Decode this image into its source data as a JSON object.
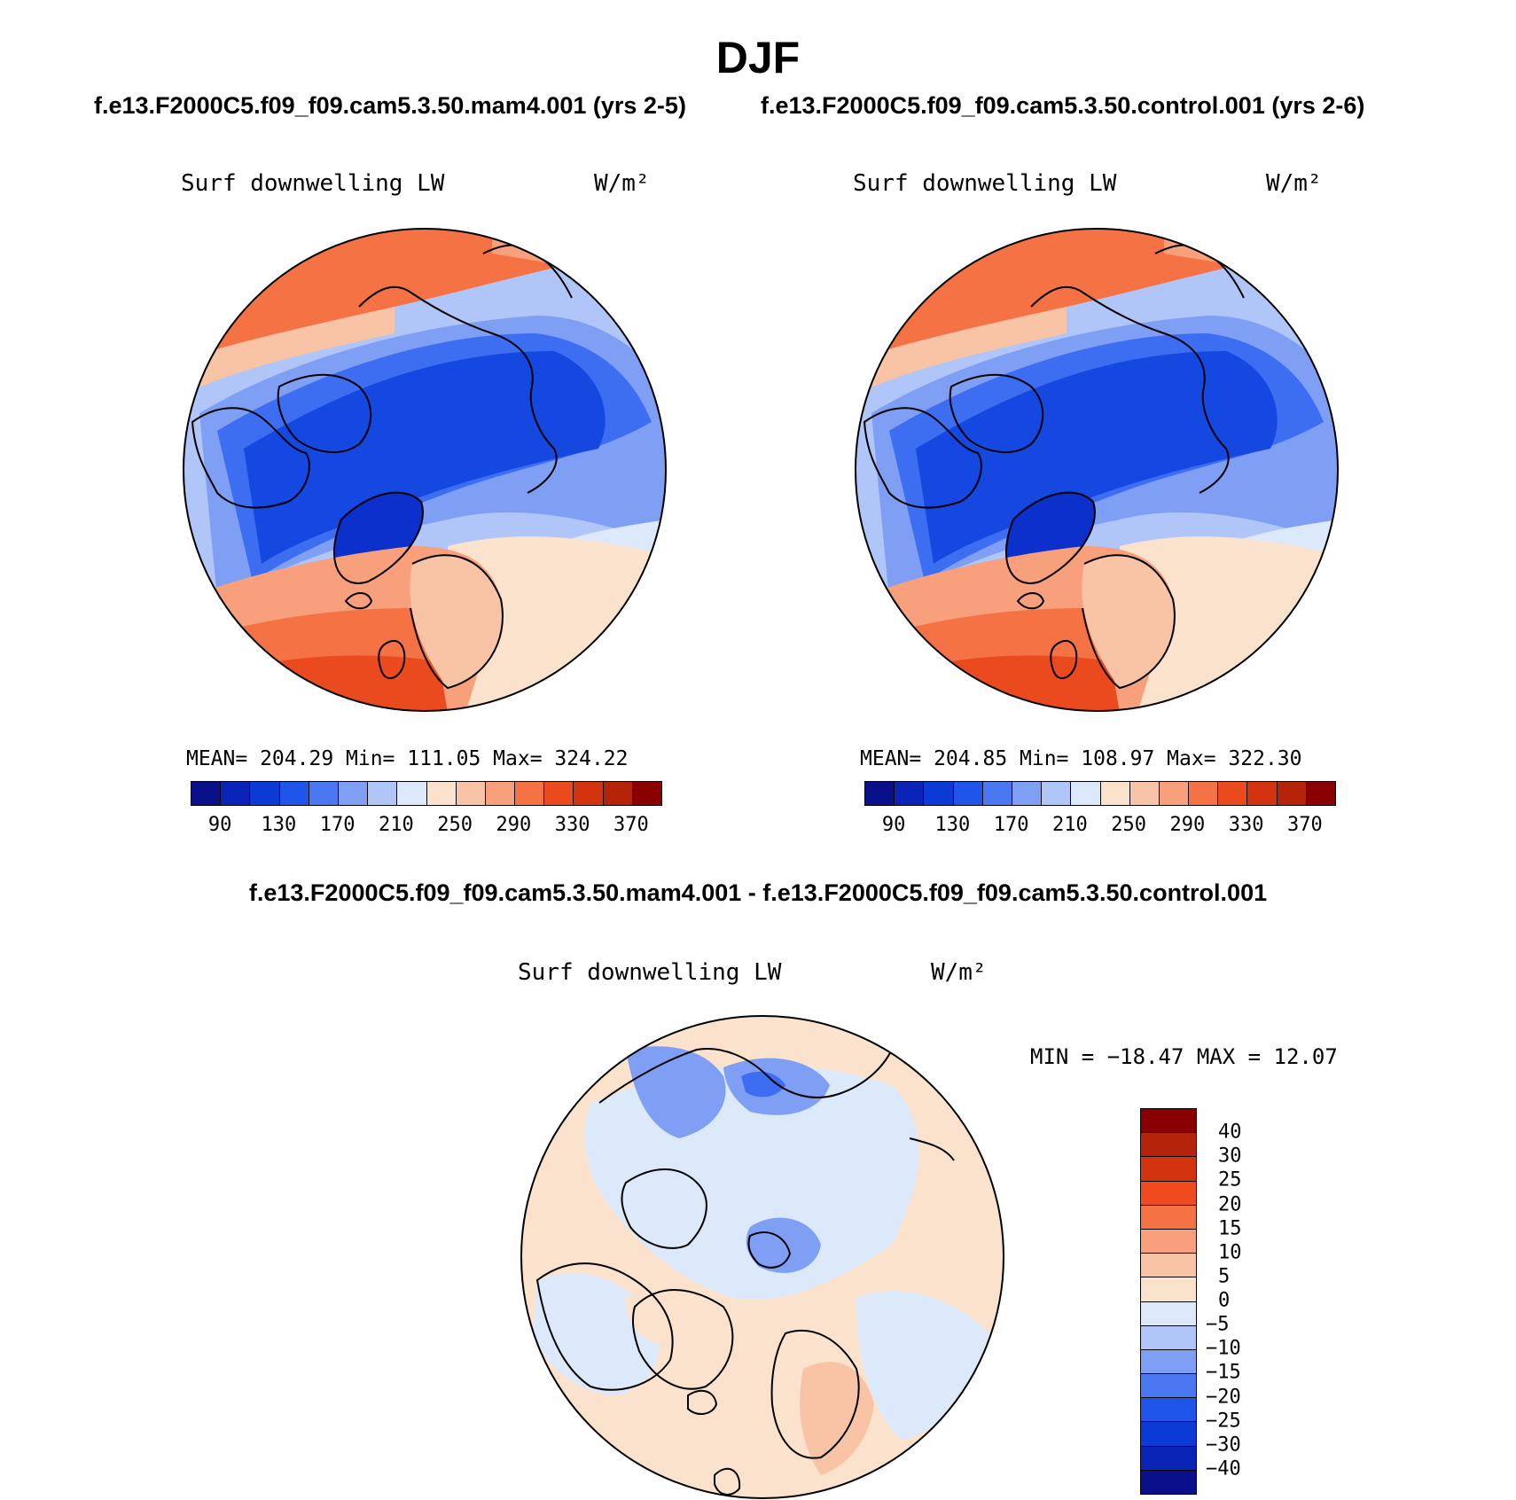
{
  "page": {
    "season": "DJF",
    "case_a_title": "f.e13.F2000C5.f09_f09.cam5.3.50.mam4.001 (yrs 2-5)",
    "case_b_title": "f.e13.F2000C5.f09_f09.cam5.3.50.control.001 (yrs 2-6)",
    "diff_title": "f.e13.F2000C5.f09_f09.cam5.3.50.mam4.001 - f.e13.F2000C5.f09_f09.cam5.3.50.control.001"
  },
  "panel_a": {
    "variable": "Surf downwelling LW",
    "units": "W/m²",
    "stats": "MEAN= 204.29   Min= 111.05   Max= 324.22"
  },
  "panel_b": {
    "variable": "Surf downwelling LW",
    "units": "W/m²",
    "stats": "MEAN= 204.85   Min= 108.97   Max= 322.30"
  },
  "panel_diff": {
    "variable": "Surf downwelling LW",
    "units": "W/m²",
    "stats": "MIN = −18.47 MAX =  12.07"
  },
  "colorbar_abs": {
    "colors": [
      "#0a0f8a",
      "#0a24b8",
      "#0c3ad6",
      "#1f55ea",
      "#4a78f2",
      "#7f9ff5",
      "#b0c6f8",
      "#dce9fb",
      "#fbe2cc",
      "#f9c4a6",
      "#f7a07b",
      "#f47244",
      "#ea4a1e",
      "#d3330f",
      "#b5240a",
      "#8a0000"
    ],
    "ticks": [
      "90",
      "130",
      "170",
      "210",
      "250",
      "290",
      "330",
      "370"
    ]
  },
  "colorbar_diff": {
    "colors_top_to_bottom": [
      "#8a0000",
      "#b5240a",
      "#d3330f",
      "#f04a1e",
      "#f47244",
      "#f7a07b",
      "#f9c4a6",
      "#fbe2cc",
      "#dce9fb",
      "#b0c6f8",
      "#7f9ff5",
      "#4a78f2",
      "#1f55ea",
      "#0c3ad6",
      "#0a24b8",
      "#0a0f8a"
    ],
    "ticks": [
      "40",
      "30",
      "25",
      "20",
      "15",
      "10",
      "5",
      "0",
      "−5",
      "−10",
      "−15",
      "−20",
      "−25",
      "−30",
      "−40"
    ]
  },
  "map_colors": {
    "deep_blue": "#1448e0",
    "mid_blue": "#3d6df0",
    "light_blue": "#7f9ff5",
    "pale_blue": "#b0c6f8",
    "faint_blue": "#dce9fb",
    "peach": "#fbe2cc",
    "light_salmon": "#f9c4a6",
    "salmon": "#f7a07b",
    "orange": "#f47244",
    "red_orange": "#ea4a1e",
    "deep_core": "#0b30cc"
  }
}
